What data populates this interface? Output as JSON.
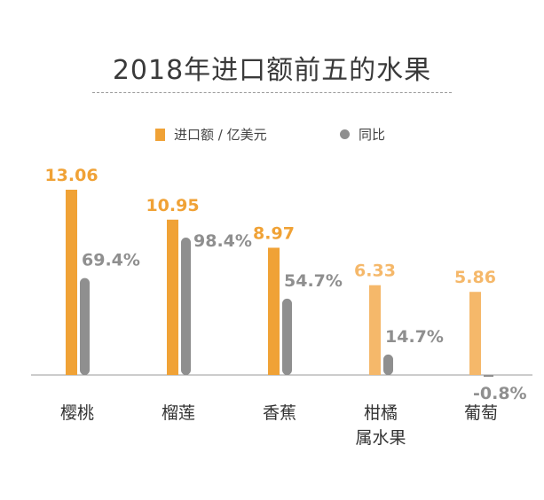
{
  "chart_data": {
    "type": "bar",
    "title": "2018年进口额前五的水果",
    "categories": [
      "樱桃",
      "榴莲",
      "香蕉",
      "柑橘\n属水果",
      "葡萄"
    ],
    "series": [
      {
        "name": "进口额 / 亿美元",
        "values": [
          13.06,
          10.95,
          8.97,
          6.33,
          5.86
        ],
        "labels": [
          "13.06",
          "10.95",
          "8.97",
          "6.33",
          "5.86"
        ],
        "color": "#f0a236"
      },
      {
        "name": "同比",
        "values": [
          69.4,
          98.4,
          54.7,
          14.7,
          -0.8
        ],
        "labels": [
          "69.4%",
          "98.4%",
          "54.7%",
          "14.7%",
          "-0.8%"
        ],
        "color": "#8f8f8f"
      }
    ],
    "legend": "top-center",
    "grid": false
  },
  "colors": {
    "orange": "#f0a236",
    "orange_light": "#f5b86a",
    "gray": "#8f8f8f",
    "title": "#3a3a3a"
  }
}
